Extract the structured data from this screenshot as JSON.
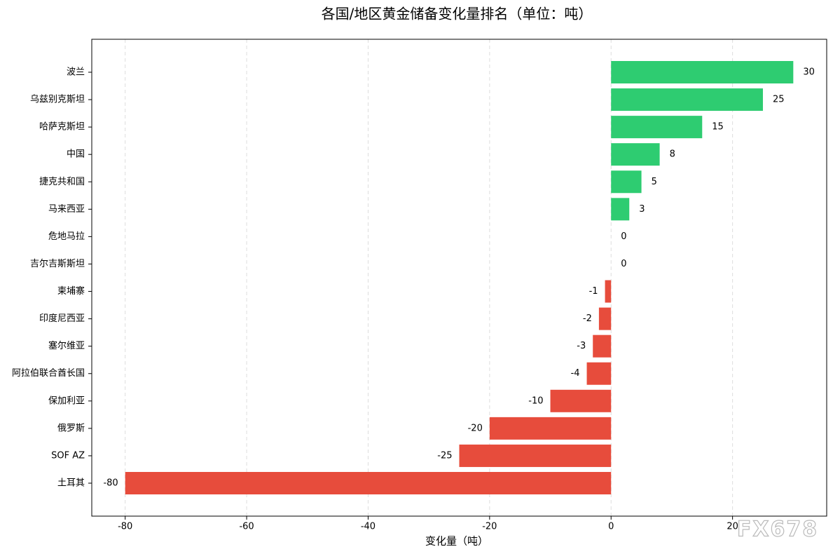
{
  "chart_data": {
    "type": "barh",
    "title": "各国/地区黄金储备变化量排名（单位：吨）",
    "x_label": "变化量（吨）",
    "categories": [
      "波兰",
      "乌兹别克斯坦",
      "哈萨克斯坦",
      "中国",
      "捷克共和国",
      "马来西亚",
      "危地马拉",
      "吉尔吉斯斯坦",
      "柬埔寨",
      "印度尼西亚",
      "塞尔维亚",
      "阿拉伯联合酋长国",
      "保加利亚",
      "俄罗斯",
      "SOF AZ",
      "土耳其"
    ],
    "values": [
      30,
      25,
      15,
      8,
      5,
      3,
      0,
      0,
      -1,
      -2,
      -3,
      -4,
      -10,
      -20,
      -25,
      -80
    ],
    "color_positive": "#2ecc71",
    "color_negative": "#e74c3c",
    "xlim": [
      -85.5,
      35.5
    ],
    "xticks": [
      -80,
      -60,
      -40,
      -20,
      0,
      20
    ],
    "grid": true,
    "watermark": "FX678"
  }
}
